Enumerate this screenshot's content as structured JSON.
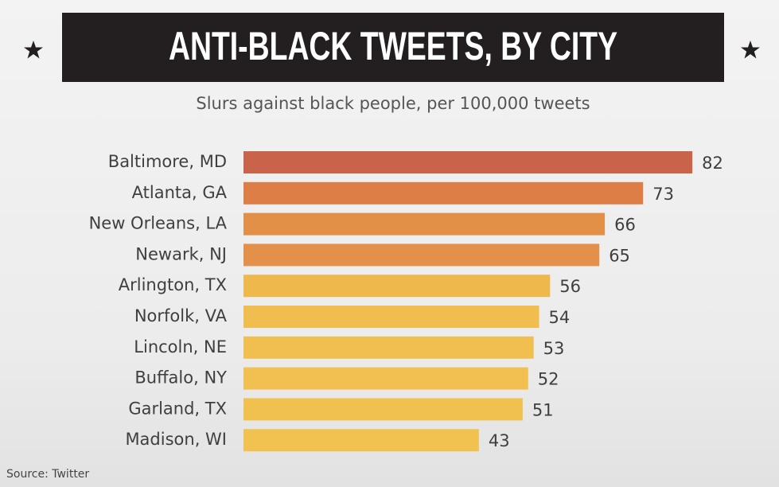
{
  "chart_data": {
    "type": "bar",
    "orientation": "horizontal",
    "title": "ANTI-BLACK TWEETS, BY CITY",
    "subtitle": "Slurs against black people, per 100,000 tweets",
    "source": "Source: Twitter",
    "categories": [
      "Baltimore, MD",
      "Atlanta, GA",
      "New Orleans, LA",
      "Newark, NJ",
      "Arlington, TX",
      "Norfolk, VA",
      "Lincoln, NE",
      "Buffalo, NY",
      "Garland, TX",
      "Madison, WI"
    ],
    "values": [
      82,
      73,
      66,
      65,
      56,
      54,
      53,
      52,
      51,
      43
    ],
    "colors": [
      "#c9634a",
      "#dc7e45",
      "#e28f48",
      "#e3914a",
      "#eeb84c",
      "#f0bd4e",
      "#f0bf4f",
      "#f1c050",
      "#f1c150",
      "#f1c250"
    ]
  }
}
